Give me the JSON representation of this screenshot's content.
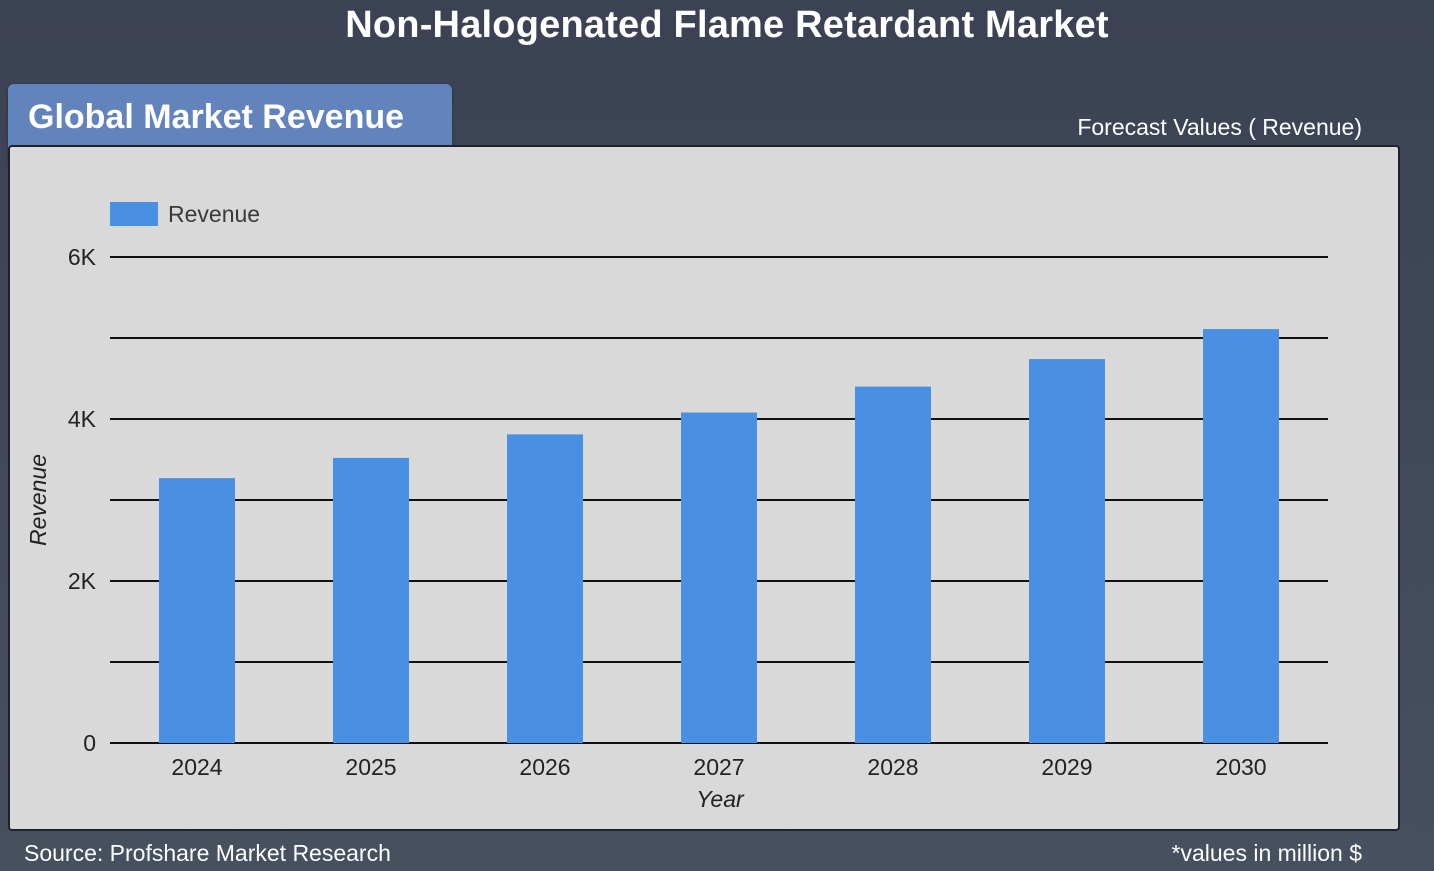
{
  "page": {
    "title": "Non-Halogenated Flame Retardant Market",
    "header_tab": "Global Market Revenue",
    "forecast_label": "Forecast Values ( Revenue)",
    "source": "Source: Profshare Market Research",
    "units_note": "*values in million $"
  },
  "colors": {
    "bar": "#4a90e2",
    "panel": "#d9d9d9",
    "header_tab": "#6283bc",
    "background": "#3f4657"
  },
  "chart_data": {
    "type": "bar",
    "categories": [
      "2024",
      "2025",
      "2026",
      "2027",
      "2028",
      "2029",
      "2030"
    ],
    "series": [
      {
        "name": "Revenue",
        "values": [
          3270,
          3520,
          3810,
          4080,
          4400,
          4740,
          5110
        ]
      }
    ],
    "xlabel": "Year",
    "ylabel": "Revenue",
    "ylim": [
      0,
      6000
    ],
    "yticks": [
      0,
      2000,
      4000,
      6000
    ],
    "ytick_labels": [
      "0",
      "2K",
      "4K",
      "6K"
    ],
    "gridlines": [
      0,
      1000,
      2000,
      3000,
      4000,
      5000,
      6000
    ],
    "grid": true,
    "legend": "top-left"
  }
}
